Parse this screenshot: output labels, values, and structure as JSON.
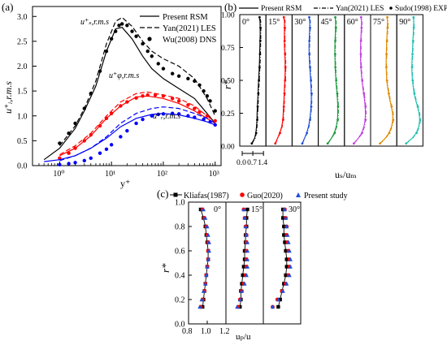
{
  "chart_data": [
    {
      "panel_label": "(a)",
      "type": "line",
      "xscale": "log",
      "xlabel": "y⁺",
      "ylabel": "u⁺ᵢ,r.m.s",
      "xlim": [
        0.3,
        1300
      ],
      "ylim": [
        0,
        3.2
      ],
      "xticks": [
        {
          "v": 1,
          "label": "10⁰"
        },
        {
          "v": 10,
          "label": "10¹"
        },
        {
          "v": 100,
          "label": "10²"
        },
        {
          "v": 1000,
          "label": "10³"
        }
      ],
      "yticks": [
        "0.0",
        "0.5",
        "1.0",
        "1.5",
        "2.0",
        "2.5",
        "3.0"
      ],
      "legend": [
        "Present RSM",
        "Yan(2021) LES",
        "Wu(2008) DNS"
      ],
      "annotations": [
        "u⁺ₛ,r.m.s",
        "u⁺φ,r.m.s",
        "u⁺ᵣ,r.m.s"
      ],
      "series": [
        {
          "name": "Present RSM",
          "component": "s",
          "style": "solid",
          "color": "#000000",
          "x": [
            0.5,
            1,
            2,
            3,
            5,
            8,
            12,
            16,
            25,
            40,
            60,
            100,
            200,
            400,
            700,
            1000
          ],
          "y": [
            0.12,
            0.35,
            0.75,
            1.1,
            1.6,
            2.3,
            2.75,
            2.78,
            2.55,
            2.2,
            1.95,
            1.75,
            1.55,
            1.35,
            1.05,
            0.85
          ]
        },
        {
          "name": "Yan(2021) LES",
          "component": "s",
          "style": "dashed",
          "color": "#000000",
          "x": [
            1,
            2,
            3,
            5,
            8,
            12,
            16,
            25,
            40,
            60,
            100,
            200,
            400,
            700,
            1000
          ],
          "y": [
            0.4,
            0.8,
            1.15,
            1.7,
            2.45,
            2.9,
            2.98,
            2.8,
            2.5,
            2.3,
            2.15,
            2.0,
            1.75,
            1.35,
            1.0
          ]
        },
        {
          "name": "Wu(2008) DNS",
          "component": "s",
          "style": "markers",
          "color": "#000000",
          "x": [
            1,
            1.5,
            2,
            3,
            4,
            6,
            8,
            10,
            12,
            14,
            16,
            20,
            25,
            30,
            40,
            50,
            60,
            80,
            100,
            150,
            200,
            300,
            400,
            500,
            600,
            700,
            800,
            1000
          ],
          "y": [
            0.45,
            0.65,
            0.85,
            1.15,
            1.45,
            1.9,
            2.3,
            2.55,
            2.7,
            2.82,
            2.85,
            2.82,
            2.7,
            2.6,
            2.45,
            2.3,
            2.2,
            2.05,
            1.95,
            1.85,
            1.8,
            1.75,
            1.7,
            1.62,
            1.5,
            1.4,
            1.3,
            1.1
          ]
        },
        {
          "name": "Present RSM",
          "component": "phi",
          "style": "solid",
          "color": "#ff0000",
          "x": [
            1,
            2,
            4,
            8,
            15,
            30,
            50,
            100,
            200,
            400,
            700,
            1000
          ],
          "y": [
            0.2,
            0.35,
            0.6,
            0.95,
            1.2,
            1.38,
            1.4,
            1.35,
            1.25,
            1.1,
            0.95,
            0.85
          ]
        },
        {
          "name": "Yan(2021) LES",
          "component": "phi",
          "style": "dashed",
          "color": "#ff0000",
          "x": [
            1,
            2,
            4,
            8,
            15,
            30,
            50,
            100,
            200,
            400,
            700,
            1000
          ],
          "y": [
            0.22,
            0.4,
            0.65,
            1.0,
            1.28,
            1.45,
            1.48,
            1.42,
            1.35,
            1.2,
            1.0,
            0.88
          ]
        },
        {
          "name": "Wu(2008) DNS",
          "component": "phi",
          "style": "markers",
          "color": "#ff0000",
          "x": [
            1,
            1.5,
            2,
            3,
            4,
            6,
            8,
            10,
            15,
            20,
            30,
            40,
            50,
            70,
            100,
            150,
            200,
            300,
            400,
            500,
            700,
            1000
          ],
          "y": [
            0.15,
            0.25,
            0.35,
            0.5,
            0.62,
            0.8,
            0.95,
            1.05,
            1.2,
            1.28,
            1.36,
            1.4,
            1.42,
            1.42,
            1.4,
            1.35,
            1.3,
            1.22,
            1.15,
            1.08,
            1.0,
            0.9
          ]
        },
        {
          "name": "Present RSM",
          "component": "r",
          "style": "solid",
          "color": "#0000ff",
          "x": [
            0.5,
            1,
            2,
            4,
            8,
            15,
            30,
            60,
            100,
            200,
            400,
            700,
            1000
          ],
          "y": [
            0.08,
            0.12,
            0.2,
            0.35,
            0.55,
            0.78,
            0.95,
            1.03,
            1.05,
            1.02,
            0.95,
            0.88,
            0.82
          ]
        },
        {
          "name": "Yan(2021) LES",
          "component": "r",
          "style": "dashed",
          "color": "#0000ff",
          "x": [
            1,
            2,
            4,
            8,
            15,
            30,
            60,
            100,
            200,
            400,
            700,
            1000
          ],
          "y": [
            0.1,
            0.2,
            0.35,
            0.58,
            0.85,
            1.05,
            1.15,
            1.18,
            1.15,
            1.05,
            0.95,
            0.85
          ]
        },
        {
          "name": "Wu(2008) DNS",
          "component": "r",
          "style": "markers",
          "color": "#0000ff",
          "x": [
            1,
            1.5,
            2,
            3,
            4,
            6,
            8,
            10,
            15,
            20,
            30,
            40,
            60,
            80,
            100,
            150,
            200,
            300,
            400,
            600,
            800,
            1000
          ],
          "y": [
            0.02,
            0.04,
            0.06,
            0.1,
            0.15,
            0.25,
            0.33,
            0.42,
            0.58,
            0.7,
            0.85,
            0.93,
            1.0,
            1.03,
            1.04,
            1.05,
            1.04,
            1.0,
            0.97,
            0.93,
            0.88,
            0.82
          ]
        }
      ]
    },
    {
      "panel_label": "(b)",
      "type": "line",
      "xlabel": "uₛ/uₘ",
      "ylabel": "r*",
      "ylim": [
        0,
        1
      ],
      "yticks": [
        "0.00",
        "0.25",
        "0.50",
        "0.75",
        "1.00"
      ],
      "xticks": [
        "0.0",
        "0.7",
        "1.4"
      ],
      "legend": [
        "Present RSM",
        "Yan(2021) LES",
        "Sudo(1998) EXP"
      ],
      "angles": [
        "0°",
        "15°",
        "30°",
        "45°",
        "60°",
        "75°",
        "90°"
      ],
      "colors": [
        "#000000",
        "#ff0000",
        "#1f4fd6",
        "#1a9a3a",
        "#c040e0",
        "#e08a00",
        "#20c0b0"
      ],
      "r": [
        0.02,
        0.06,
        0.1,
        0.15,
        0.2,
        0.25,
        0.3,
        0.35,
        0.4,
        0.45,
        0.5,
        0.55,
        0.6,
        0.65,
        0.7,
        0.75,
        0.8,
        0.85,
        0.9,
        0.95,
        0.98
      ],
      "profiles": [
        {
          "angle": "0°",
          "values": [
            0.62,
            0.82,
            0.9,
            0.94,
            0.97,
            0.98,
            1.0,
            1.02,
            1.04,
            1.06,
            1.08,
            1.1,
            1.12,
            1.14,
            1.15,
            1.16,
            1.17,
            1.18,
            1.18,
            1.17,
            1.12
          ]
        },
        {
          "angle": "15°",
          "values": [
            0.45,
            0.6,
            0.75,
            0.88,
            0.95,
            0.98,
            1.0,
            1.02,
            1.04,
            1.06,
            1.08,
            1.1,
            1.1,
            1.1,
            1.08,
            1.06,
            1.05,
            1.05,
            1.06,
            1.06,
            1.0
          ]
        },
        {
          "angle": "30°",
          "values": [
            0.5,
            0.65,
            0.8,
            0.92,
            1.0,
            1.05,
            1.08,
            1.1,
            1.1,
            1.08,
            1.06,
            1.03,
            1.0,
            0.98,
            0.96,
            0.95,
            0.96,
            0.98,
            1.0,
            1.0,
            0.95
          ]
        },
        {
          "angle": "45°",
          "values": [
            0.45,
            0.7,
            0.9,
            1.02,
            1.1,
            1.12,
            1.12,
            1.1,
            1.07,
            1.03,
            1.0,
            0.97,
            0.95,
            0.94,
            0.93,
            0.93,
            0.94,
            0.96,
            0.98,
            0.98,
            0.94
          ]
        },
        {
          "angle": "60°",
          "values": [
            0.45,
            0.75,
            0.98,
            1.12,
            1.2,
            1.22,
            1.2,
            1.16,
            1.1,
            1.04,
            0.99,
            0.95,
            0.92,
            0.9,
            0.9,
            0.9,
            0.91,
            0.93,
            0.95,
            0.96,
            0.92
          ]
        },
        {
          "angle": "75°",
          "values": [
            0.45,
            0.8,
            1.05,
            1.22,
            1.3,
            1.28,
            1.2,
            1.1,
            1.02,
            0.95,
            0.9,
            0.88,
            0.86,
            0.86,
            0.87,
            0.88,
            0.9,
            0.92,
            0.94,
            0.95,
            0.92
          ]
        },
        {
          "angle": "90°",
          "values": [
            0.45,
            0.85,
            1.12,
            1.28,
            1.35,
            1.3,
            1.2,
            1.08,
            0.98,
            0.92,
            0.87,
            0.84,
            0.83,
            0.84,
            0.86,
            0.88,
            0.9,
            0.92,
            0.94,
            0.95,
            0.92
          ]
        }
      ]
    },
    {
      "panel_label": "(c)",
      "type": "scatter",
      "xlabel": "uₚ/u",
      "ylabel": "r*",
      "ylim": [
        0,
        1
      ],
      "xlim": [
        0.8,
        1.2
      ],
      "yticks": [
        "0.0",
        "0.2",
        "0.4",
        "0.6",
        "0.8",
        "1.0"
      ],
      "xticks": [
        "0.8",
        "1.0",
        "1.2"
      ],
      "legend": [
        "Kliafas(1987)",
        "Guo(2020)",
        "Present study"
      ],
      "angles": [
        "0°",
        "15°",
        "30°"
      ],
      "profiles": [
        {
          "angle": "0°",
          "r": [
            0.14,
            0.2,
            0.27,
            0.33,
            0.4,
            0.47,
            0.53,
            0.6,
            0.67,
            0.73,
            0.8,
            0.87,
            0.94
          ],
          "Kliafas(1987)": [
            0.95,
            0.96,
            0.97,
            0.98,
            0.99,
            1.0,
            1.01,
            1.01,
            1.0,
            0.99,
            0.98,
            0.96,
            0.93
          ],
          "Guo(2020)": [
            0.93,
            0.95,
            0.97,
            0.98,
            0.99,
            1.0,
            1.01,
            1.01,
            1.01,
            1.0,
            0.99,
            0.97,
            0.95
          ],
          "Present study": [
            0.92,
            0.94,
            0.96,
            0.98,
            0.99,
            1.0,
            1.01,
            1.02,
            1.02,
            1.01,
            1.0,
            0.98,
            0.96
          ]
        },
        {
          "angle": "15°",
          "r": [
            0.14,
            0.2,
            0.27,
            0.33,
            0.4,
            0.47,
            0.53,
            0.6,
            0.67,
            0.73,
            0.8,
            0.87,
            0.94
          ],
          "Kliafas(1987)": [
            0.95,
            0.96,
            0.96,
            0.97,
            0.98,
            0.99,
            1.0,
            1.0,
            1.01,
            1.01,
            1.02,
            1.02,
            1.03
          ],
          "Guo(2020)": [
            0.93,
            0.95,
            0.97,
            0.99,
            1.01,
            1.02,
            1.02,
            1.02,
            1.02,
            1.02,
            1.01,
            1.0,
            0.99
          ],
          "Present study": [
            0.92,
            0.95,
            0.97,
            1.0,
            1.02,
            1.03,
            1.03,
            1.03,
            1.03,
            1.02,
            1.01,
            1.0,
            0.99
          ]
        },
        {
          "angle": "30°",
          "r": [
            0.14,
            0.2,
            0.27,
            0.33,
            0.4,
            0.47,
            0.53,
            0.6,
            0.67,
            0.73,
            0.8,
            0.87,
            0.94
          ],
          "Kliafas(1987)": [
            0.96,
            0.98,
            1.0,
            1.02,
            1.04,
            1.05,
            1.05,
            1.04,
            1.03,
            1.02,
            1.02,
            1.01,
            1.01
          ],
          "Guo(2020)": [
            0.9,
            0.95,
            1.0,
            1.04,
            1.07,
            1.08,
            1.08,
            1.07,
            1.06,
            1.05,
            1.05,
            1.04,
            1.03
          ],
          "Present study": [
            0.9,
            0.96,
            1.01,
            1.05,
            1.08,
            1.09,
            1.09,
            1.08,
            1.07,
            1.06,
            1.05,
            1.04,
            1.03
          ]
        }
      ]
    }
  ]
}
